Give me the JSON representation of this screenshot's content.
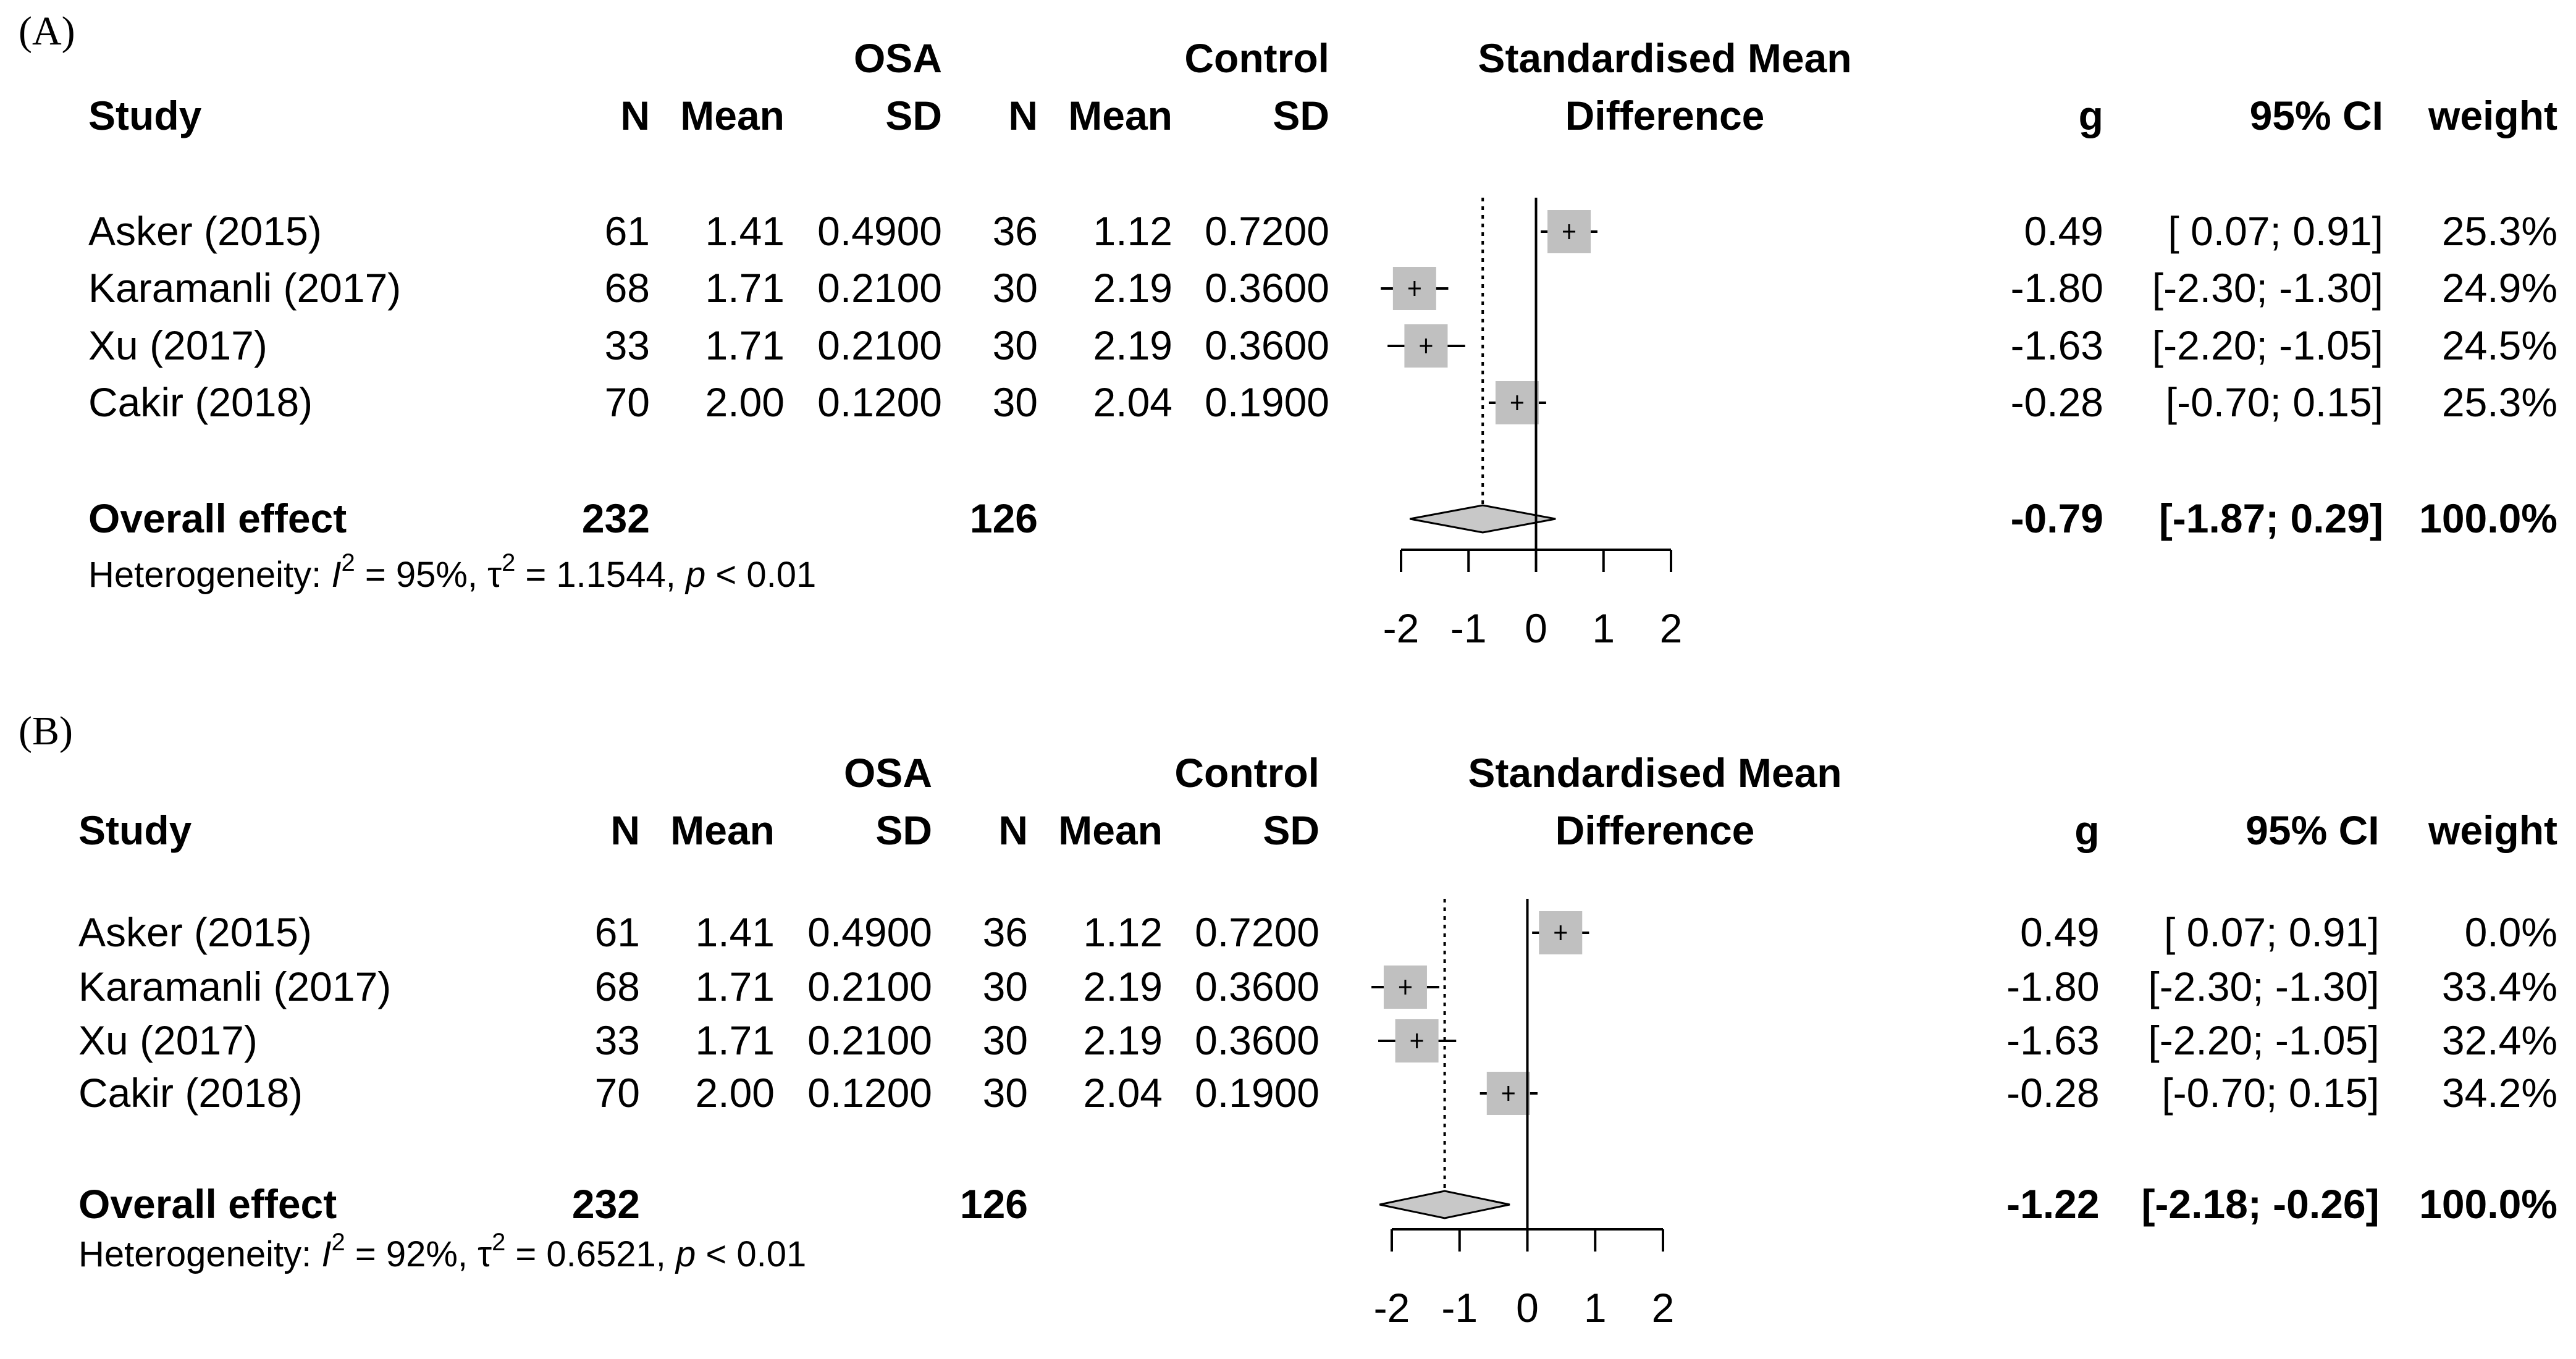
{
  "chart_data": [
    {
      "type": "forest",
      "panel_label": "(A)",
      "group_headers": {
        "osa": "OSA",
        "control": "Control",
        "effect_line1": "Standardised Mean",
        "effect_line2": "Difference"
      },
      "columns": {
        "study": "Study",
        "n": "N",
        "mean": "Mean",
        "sd": "SD",
        "g": "g",
        "ci": "95% CI",
        "weight": "weight"
      },
      "rows": [
        {
          "study": "Asker (2015)",
          "osa_n": "61",
          "osa_mean": "1.41",
          "osa_sd": "0.4900",
          "ctrl_n": "36",
          "ctrl_mean": "1.12",
          "ctrl_sd": "0.7200",
          "g_text": "0.49",
          "ci_text": "[ 0.07;  0.91]",
          "weight_text": "25.3%",
          "g": 0.49,
          "lo": 0.07,
          "hi": 0.91,
          "weight": 25.3
        },
        {
          "study": "Karamanli (2017)",
          "osa_n": "68",
          "osa_mean": "1.71",
          "osa_sd": "0.2100",
          "ctrl_n": "30",
          "ctrl_mean": "2.19",
          "ctrl_sd": "0.3600",
          "g_text": "-1.80",
          "ci_text": "[-2.30; -1.30]",
          "weight_text": "24.9%",
          "g": -1.8,
          "lo": -2.3,
          "hi": -1.3,
          "weight": 24.9
        },
        {
          "study": "Xu (2017)",
          "osa_n": "33",
          "osa_mean": "1.71",
          "osa_sd": "0.2100",
          "ctrl_n": "30",
          "ctrl_mean": "2.19",
          "ctrl_sd": "0.3600",
          "g_text": "-1.63",
          "ci_text": "[-2.20; -1.05]",
          "weight_text": "24.5%",
          "g": -1.63,
          "lo": -2.2,
          "hi": -1.05,
          "weight": 24.5
        },
        {
          "study": "Cakir (2018)",
          "osa_n": "70",
          "osa_mean": "2.00",
          "osa_sd": "0.1200",
          "ctrl_n": "30",
          "ctrl_mean": "2.04",
          "ctrl_sd": "0.1900",
          "g_text": "-0.28",
          "ci_text": "[-0.70;  0.15]",
          "weight_text": "25.3%",
          "g": -0.28,
          "lo": -0.7,
          "hi": 0.15,
          "weight": 25.3
        }
      ],
      "overall": {
        "label": "Overall effect",
        "osa_n": "232",
        "ctrl_n": "126",
        "g_text": "-0.79",
        "ci_text": "[-1.87;  0.29]",
        "weight_text": "100.0%",
        "g": -0.79,
        "lo": -1.87,
        "hi": 0.29
      },
      "heterogeneity": {
        "prefix": "Heterogeneity: ",
        "i2_letter": "I",
        "i2_value": " = 95%, ",
        "tau_letter": "τ",
        "tau_value": " = 1.1544, ",
        "p_letter": "p",
        "p_value": " < 0.01"
      },
      "x_axis": {
        "ticks": [
          -2,
          -1,
          0,
          1,
          2
        ],
        "tick_labels": [
          "-2",
          "-1",
          "0",
          "1",
          "2"
        ],
        "xlim": [
          -2,
          2
        ]
      }
    },
    {
      "type": "forest",
      "panel_label": "(B)",
      "group_headers": {
        "osa": "OSA",
        "control": "Control",
        "effect_line1": "Standardised Mean",
        "effect_line2": "Difference"
      },
      "columns": {
        "study": "Study",
        "n": "N",
        "mean": "Mean",
        "sd": "SD",
        "g": "g",
        "ci": "95% CI",
        "weight": "weight"
      },
      "rows": [
        {
          "study": "Asker (2015)",
          "osa_n": "61",
          "osa_mean": "1.41",
          "osa_sd": "0.4900",
          "ctrl_n": "36",
          "ctrl_mean": "1.12",
          "ctrl_sd": "0.7200",
          "g_text": "0.49",
          "ci_text": "[ 0.07;  0.91]",
          "weight_text": "0.0%",
          "g": 0.49,
          "lo": 0.07,
          "hi": 0.91,
          "weight": 0.0
        },
        {
          "study": "Karamanli (2017)",
          "osa_n": "68",
          "osa_mean": "1.71",
          "osa_sd": "0.2100",
          "ctrl_n": "30",
          "ctrl_mean": "2.19",
          "ctrl_sd": "0.3600",
          "g_text": "-1.80",
          "ci_text": "[-2.30; -1.30]",
          "weight_text": "33.4%",
          "g": -1.8,
          "lo": -2.3,
          "hi": -1.3,
          "weight": 33.4
        },
        {
          "study": "Xu (2017)",
          "osa_n": "33",
          "osa_mean": "1.71",
          "osa_sd": "0.2100",
          "ctrl_n": "30",
          "ctrl_mean": "2.19",
          "ctrl_sd": "0.3600",
          "g_text": "-1.63",
          "ci_text": "[-2.20; -1.05]",
          "weight_text": "32.4%",
          "g": -1.63,
          "lo": -2.2,
          "hi": -1.05,
          "weight": 32.4
        },
        {
          "study": "Cakir (2018)",
          "osa_n": "70",
          "osa_mean": "2.00",
          "osa_sd": "0.1200",
          "ctrl_n": "30",
          "ctrl_mean": "2.04",
          "ctrl_sd": "0.1900",
          "g_text": "-0.28",
          "ci_text": "[-0.70;  0.15]",
          "weight_text": "34.2%",
          "g": -0.28,
          "lo": -0.7,
          "hi": 0.15,
          "weight": 34.2
        }
      ],
      "overall": {
        "label": "Overall effect",
        "osa_n": "232",
        "ctrl_n": "126",
        "g_text": "-1.22",
        "ci_text": "[-2.18; -0.26]",
        "weight_text": "100.0%",
        "g": -1.22,
        "lo": -2.18,
        "hi": -0.26
      },
      "heterogeneity": {
        "prefix": "Heterogeneity: ",
        "i2_letter": "I",
        "i2_value": " = 92%, ",
        "tau_letter": "τ",
        "tau_value": " = 0.6521, ",
        "p_letter": "p",
        "p_value": " < 0.01"
      },
      "x_axis": {
        "ticks": [
          -2,
          -1,
          0,
          1,
          2
        ],
        "tick_labels": [
          "-2",
          "-1",
          "0",
          "1",
          "2"
        ],
        "xlim": [
          -2,
          2
        ]
      }
    }
  ],
  "colors": {
    "square_fill": "#c0c0c0",
    "diamond_fill": "#c8c8c8",
    "line": "#000000",
    "text": "#000000"
  }
}
